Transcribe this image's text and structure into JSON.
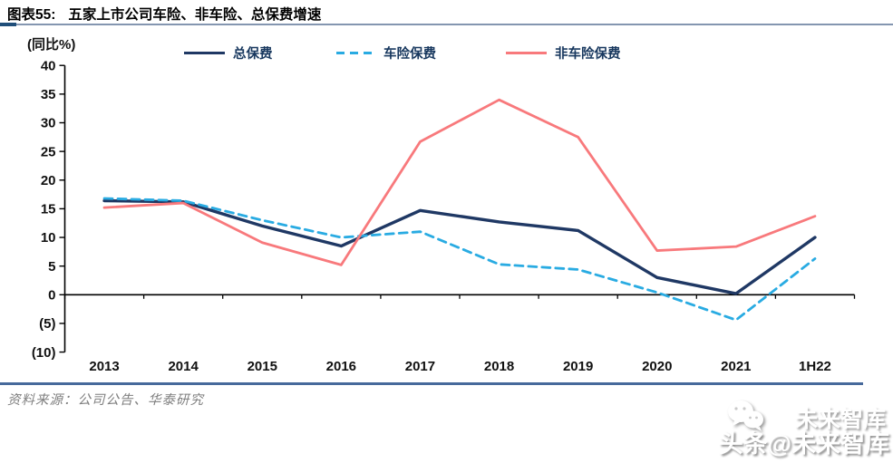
{
  "header": {
    "figure_label": "图表55:",
    "title": "五家上市公司车险、非车险、总保费增速"
  },
  "axis_unit": "(同比%)",
  "source": "资料来源：公司公告、华泰研究",
  "watermark": {
    "upper": "未来智库",
    "lower": "头条@未来智库",
    "icon": "wechat-bubbles-icon"
  },
  "colors": {
    "title_rule_dark": "#1F4E79",
    "title_rule_light": "#8496B0",
    "bottom_rule": "#47699B",
    "axis": "#000000",
    "total_premium": "#1F3864",
    "auto_premium": "#29ABE2",
    "non_auto_premium": "#F8797C"
  },
  "chart_data": {
    "type": "line",
    "title": "五家上市公司车险、非车险、总保费增速",
    "xlabel": "",
    "ylabel": "(同比%)",
    "categories": [
      "2013",
      "2014",
      "2015",
      "2016",
      "2017",
      "2018",
      "2019",
      "2020",
      "2021",
      "1H22"
    ],
    "series": [
      {
        "name": "总保费",
        "color": "#1F3864",
        "style": "solid",
        "width": 3.4,
        "values": [
          16.4,
          16.2,
          12.0,
          8.5,
          14.7,
          12.7,
          11.2,
          3.0,
          0.2,
          10.0
        ]
      },
      {
        "name": "车险保费",
        "color": "#29ABE2",
        "style": "dashed",
        "width": 2.8,
        "values": [
          16.8,
          16.4,
          13.0,
          10.0,
          11.0,
          5.3,
          4.4,
          0.4,
          -4.4,
          6.3
        ]
      },
      {
        "name": "非车险保费",
        "color": "#F8797C",
        "style": "solid",
        "width": 2.8,
        "values": [
          15.2,
          16.0,
          9.1,
          5.2,
          26.7,
          34.0,
          27.5,
          7.7,
          8.4,
          13.7
        ]
      }
    ],
    "ylim": [
      -10,
      40
    ],
    "yticks": {
      "values": [
        40,
        35,
        30,
        25,
        20,
        15,
        10,
        5,
        0,
        -5,
        -10
      ],
      "labels": [
        "40",
        "35",
        "30",
        "25",
        "20",
        "15",
        "10",
        "5",
        "0",
        "(5)",
        "(10)"
      ]
    },
    "grid": false,
    "legend_position": "top"
  }
}
